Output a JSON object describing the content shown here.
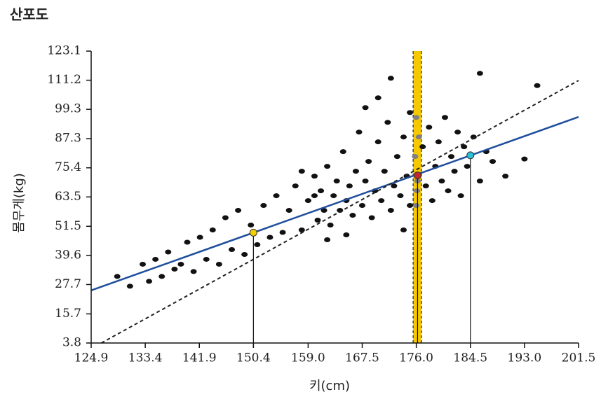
{
  "chart_data": {
    "type": "scatter",
    "title": "산포도",
    "x_label": "키(cm)",
    "y_label": "몸무게(kg)",
    "xlim": [
      124.9,
      201.5
    ],
    "ylim": [
      3.8,
      123.1
    ],
    "xticks": [
      124.9,
      133.4,
      141.9,
      150.4,
      {
        "value": 159.0,
        "label": "159.0"
      },
      167.5,
      {
        "value": 176.0,
        "label": "176.0"
      },
      184.5,
      {
        "value": 193.0,
        "label": "193.0"
      },
      201.5
    ],
    "yticks": [
      3.8,
      15.7,
      27.7,
      39.6,
      51.5,
      63.5,
      75.4,
      87.3,
      99.3,
      111.2,
      123.1
    ],
    "points": {
      "color": "#111111",
      "x": [
        129,
        131,
        133,
        134,
        135,
        136,
        137,
        138,
        139,
        140,
        141,
        142,
        143,
        144,
        145,
        146,
        147,
        148,
        149,
        150,
        151,
        152,
        153,
        154,
        155,
        156,
        157,
        158,
        159,
        160,
        160.5,
        161,
        161.5,
        162,
        162.5,
        163,
        163.5,
        164,
        164.5,
        165,
        165.5,
        166,
        166.5,
        167,
        167.5,
        168,
        168.5,
        169,
        169.5,
        170,
        170.5,
        171,
        171.5,
        172,
        172.5,
        173,
        173.5,
        174,
        174.5,
        175,
        177,
        177.5,
        178,
        178.5,
        179,
        179.5,
        180,
        180.5,
        181,
        181.5,
        182,
        182.5,
        183,
        183.5,
        184,
        185,
        186,
        187,
        188,
        190,
        193,
        165,
        170,
        168,
        172,
        158,
        162,
        175,
        174,
        160,
        195,
        186
      ],
      "y": [
        31,
        27,
        36,
        29,
        38,
        31,
        41,
        34,
        36,
        45,
        33,
        47,
        38,
        50,
        36,
        55,
        42,
        58,
        40,
        52,
        44,
        60,
        47,
        64,
        49,
        58,
        68,
        50,
        62,
        72,
        54,
        66,
        58,
        76,
        52,
        64,
        70,
        58,
        82,
        62,
        68,
        56,
        74,
        90,
        60,
        70,
        78,
        55,
        66,
        86,
        62,
        74,
        94,
        58,
        68,
        80,
        64,
        88,
        72,
        60,
        84,
        68,
        92,
        62,
        76,
        86,
        70,
        96,
        66,
        80,
        74,
        90,
        64,
        84,
        76,
        88,
        70,
        82,
        78,
        72,
        79,
        48,
        104,
        100,
        112,
        74,
        46,
        98,
        50,
        64,
        109,
        114
      ]
    },
    "band": {
      "x": [
        175.5,
        176.8
      ],
      "color": "#f5c800",
      "points": {
        "color": "#808080",
        "x": [
          176,
          176.2,
          175.8,
          176.4,
          176,
          176.1
        ],
        "y": [
          60,
          70,
          80,
          88,
          96,
          66
        ]
      }
    },
    "lines": [
      {
        "color": "#1f4e9c",
        "dash": false,
        "x": [
          124.9,
          201.5
        ],
        "y": [
          25.3,
          96.2
        ]
      },
      {
        "color": "#222222",
        "dash": true,
        "x": [
          126.5,
          201.5
        ],
        "y": [
          3.8,
          111.1
        ]
      }
    ],
    "highlights": [
      {
        "x": 150.4,
        "y": 48.9,
        "color": "#f5d000"
      },
      {
        "x": 176.2,
        "y": 72.3,
        "color": "#c0282d"
      },
      {
        "x": 184.5,
        "y": 80.5,
        "color": "#2bc0d8"
      }
    ]
  }
}
